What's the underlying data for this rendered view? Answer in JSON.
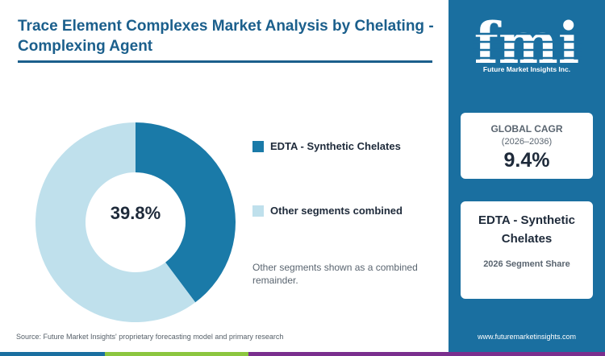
{
  "title": "Trace Element Complexes Market Analysis by Chelating - Complexing Agent",
  "chart_data": {
    "type": "pie",
    "variant": "donut",
    "segments": [
      {
        "name": "EDTA - Synthetic Chelates",
        "value": 39.8,
        "color": "#1a7aa8"
      },
      {
        "name": "Other segments combined",
        "value": 60.2,
        "color": "#bfe0ec"
      }
    ],
    "center_label": "39.8%",
    "legend_placement": "right"
  },
  "note": "Other segments shown as a combined remainder.",
  "source": "Source: Future Market Insights' proprietary forecasting model and primary research",
  "sidebar": {
    "logo_text": "fmi",
    "logo_subtitle": "Future Market Insights Inc.",
    "cagr_label": "GLOBAL CAGR",
    "cagr_period": "(2026–2036)",
    "cagr_value": "9.4%",
    "segment_name": "EDTA - Synthetic Chelates",
    "segment_caption": "2026 Segment Share",
    "website": "www.futuremarketinsights.com"
  },
  "colors": {
    "title": "#1b5f8c",
    "sidebar": "#1a6fa0",
    "bar": [
      "#1a6fa0",
      "#8cc63f",
      "#7a2e8e"
    ]
  }
}
